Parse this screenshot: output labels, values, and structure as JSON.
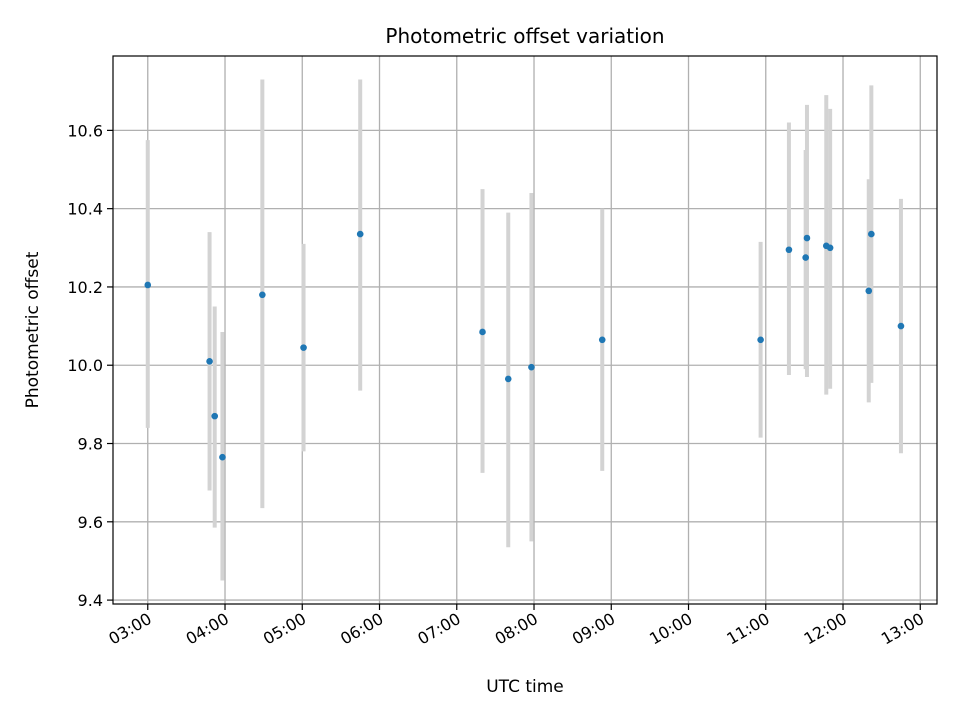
{
  "chart_data": {
    "type": "scatter",
    "title": "Photometric offset variation",
    "xlabel": "UTC time",
    "ylabel": "Photometric offset",
    "x_tick_labels": [
      "03:00",
      "04:00",
      "05:00",
      "06:00",
      "07:00",
      "08:00",
      "09:00",
      "10:00",
      "11:00",
      "12:00",
      "13:00"
    ],
    "y_tick_labels": [
      "9.4",
      "9.6",
      "9.8",
      "10.0",
      "10.2",
      "10.4",
      "10.6"
    ],
    "y_ticks": [
      9.4,
      9.6,
      9.8,
      10.0,
      10.2,
      10.4,
      10.6
    ],
    "xlim": [
      "02:33",
      "13:13"
    ],
    "ylim": [
      9.39,
      10.79
    ],
    "grid": true,
    "colors": {
      "marker": "#1f77b4",
      "errorbar": "#d3d3d3",
      "grid": "#b0b0b0"
    },
    "points": [
      {
        "time": "03:00",
        "y": 10.205,
        "y_low": 9.84,
        "y_high": 10.575
      },
      {
        "time": "03:48",
        "y": 10.01,
        "y_low": 9.68,
        "y_high": 10.34
      },
      {
        "time": "03:52",
        "y": 9.87,
        "y_low": 9.585,
        "y_high": 10.15
      },
      {
        "time": "03:58",
        "y": 9.765,
        "y_low": 9.45,
        "y_high": 10.085
      },
      {
        "time": "04:29",
        "y": 10.18,
        "y_low": 9.635,
        "y_high": 10.73
      },
      {
        "time": "05:01",
        "y": 10.045,
        "y_low": 9.78,
        "y_high": 10.31
      },
      {
        "time": "05:45",
        "y": 10.335,
        "y_low": 9.935,
        "y_high": 10.73
      },
      {
        "time": "07:20",
        "y": 10.085,
        "y_low": 9.725,
        "y_high": 10.45
      },
      {
        "time": "07:40",
        "y": 9.965,
        "y_low": 9.535,
        "y_high": 10.39
      },
      {
        "time": "07:58",
        "y": 9.995,
        "y_low": 9.55,
        "y_high": 10.44
      },
      {
        "time": "08:53",
        "y": 10.065,
        "y_low": 9.73,
        "y_high": 10.4
      },
      {
        "time": "10:56",
        "y": 10.065,
        "y_low": 9.815,
        "y_high": 10.315
      },
      {
        "time": "11:18",
        "y": 10.295,
        "y_low": 9.975,
        "y_high": 10.62
      },
      {
        "time": "11:31",
        "y": 10.275,
        "y_low": 9.99,
        "y_high": 10.55
      },
      {
        "time": "11:32",
        "y": 10.325,
        "y_low": 9.97,
        "y_high": 10.665
      },
      {
        "time": "11:47",
        "y": 10.305,
        "y_low": 9.925,
        "y_high": 10.69
      },
      {
        "time": "11:50",
        "y": 10.3,
        "y_low": 9.94,
        "y_high": 10.655
      },
      {
        "time": "12:20",
        "y": 10.19,
        "y_low": 9.905,
        "y_high": 10.475
      },
      {
        "time": "12:22",
        "y": 10.335,
        "y_low": 9.955,
        "y_high": 10.715
      },
      {
        "time": "12:45",
        "y": 10.1,
        "y_low": 9.775,
        "y_high": 10.425
      }
    ]
  }
}
